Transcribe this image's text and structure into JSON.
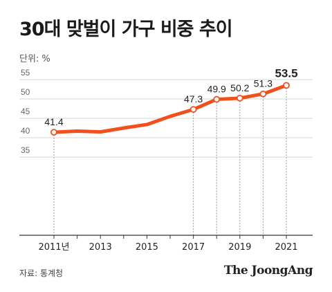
{
  "title": "30대 맞벌이 가구 비중 추이",
  "unit_label": "단위: %",
  "source": "자료: 통계청",
  "brand": "The JoongAng",
  "chart_data": {
    "type": "line",
    "x": [
      2011,
      2012,
      2013,
      2014,
      2015,
      2016,
      2017,
      2018,
      2019,
      2020,
      2021
    ],
    "series": [
      {
        "values": [
          41.4,
          41.7,
          41.5,
          42.5,
          43.4,
          45.5,
          47.3,
          49.9,
          50.2,
          51.3,
          53.5
        ]
      }
    ],
    "data_labels": [
      {
        "x": 2011,
        "text": "41.4"
      },
      {
        "x": 2017,
        "text": "47.3"
      },
      {
        "x": 2018,
        "text": "49.9"
      },
      {
        "x": 2019,
        "text": "50.2"
      },
      {
        "x": 2020,
        "text": "51.3"
      },
      {
        "x": 2021,
        "text": "53.5"
      }
    ],
    "x_tick_labels": [
      {
        "x": 2011,
        "text": "2011년"
      },
      {
        "x": 2013,
        "text": "2013"
      },
      {
        "x": 2015,
        "text": "2015"
      },
      {
        "x": 2017,
        "text": "2017"
      },
      {
        "x": 2019,
        "text": "2019"
      },
      {
        "x": 2021,
        "text": "2021"
      }
    ],
    "y_ticks": [
      35,
      40,
      45,
      50,
      55
    ],
    "ylim": [
      35,
      55
    ],
    "xlim": [
      2010,
      2022
    ],
    "grid": "horizontal",
    "line_color": "#f24f1c",
    "highlight_label": "53.5"
  }
}
